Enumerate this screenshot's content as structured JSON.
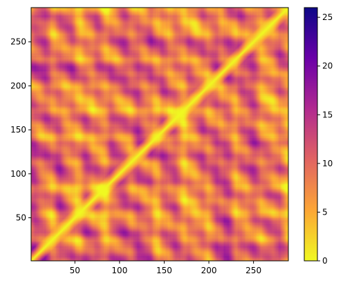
{
  "chart_data": {
    "type": "heatmap",
    "title": "",
    "xlabel": "",
    "ylabel": "",
    "xlim": [
      1,
      289
    ],
    "ylim": [
      1,
      289
    ],
    "x_ticks": [
      50,
      100,
      150,
      200,
      250
    ],
    "y_ticks": [
      50,
      100,
      150,
      200,
      250
    ],
    "x_tick_labels": [
      "50",
      "100",
      "150",
      "200",
      "250"
    ],
    "y_tick_labels": [
      "50",
      "100",
      "150",
      "200",
      "250"
    ],
    "colormap": "plasma_r",
    "colormap_stops": [
      "#f0f921",
      "#fca636",
      "#e16462",
      "#b12a90",
      "#6a00a8",
      "#0d0887"
    ],
    "value_range": [
      0,
      26
    ],
    "diagonal_value": 0,
    "symmetric": true,
    "colorbar": {
      "ticks": [
        0,
        5,
        10,
        15,
        20,
        25
      ],
      "tick_labels": [
        "0",
        "5",
        "10",
        "15",
        "20",
        "25"
      ],
      "placement": "right"
    },
    "grid": false
  }
}
